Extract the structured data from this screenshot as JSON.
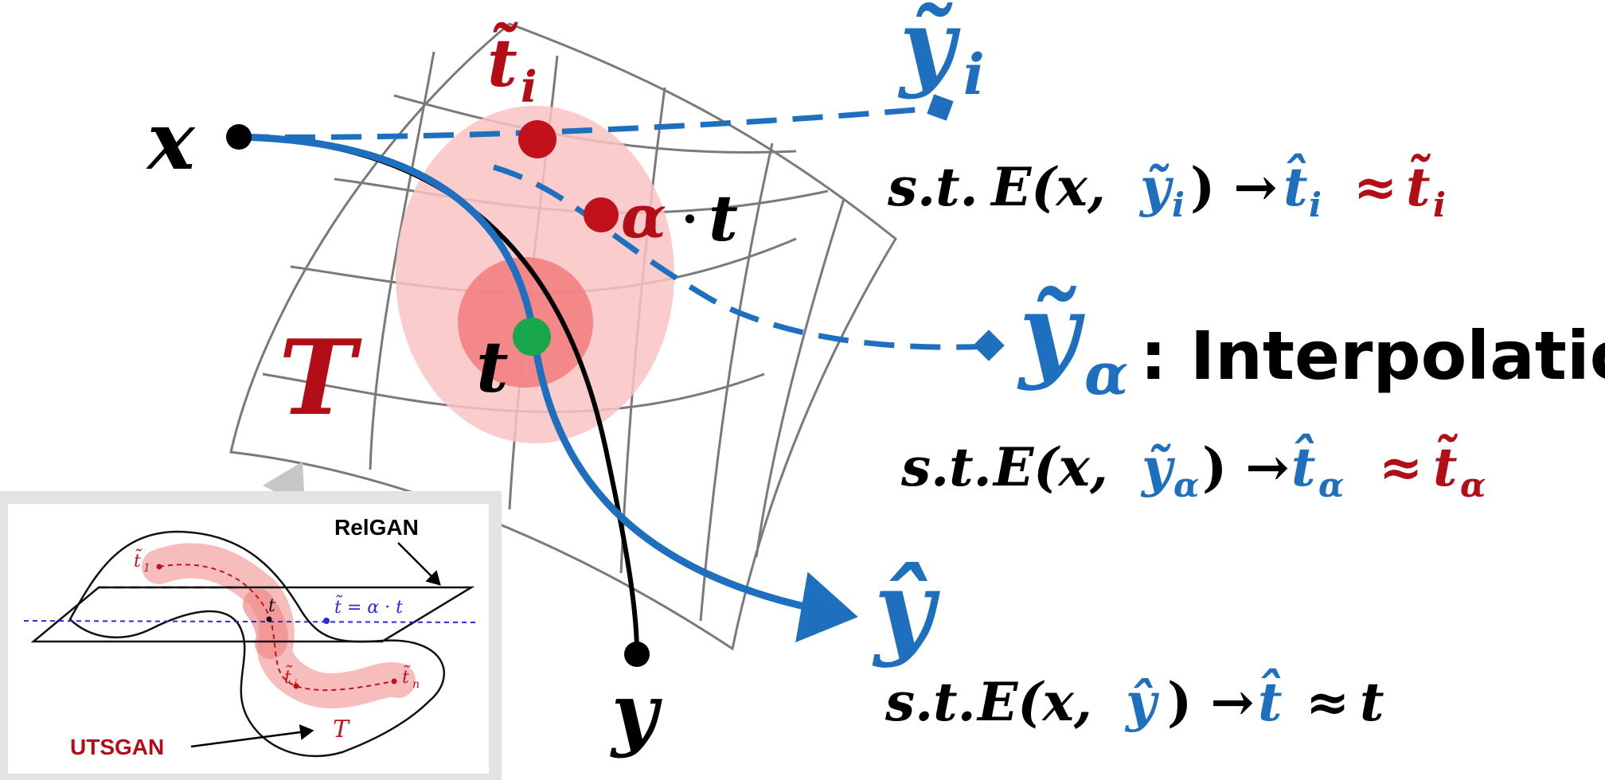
{
  "colors": {
    "blue": "#1f6fbf",
    "red": "#b30d17",
    "black": "#000000",
    "green": "#1aa64a",
    "grid": "#7a7a7a",
    "pink_light": "#f9c3c3",
    "pink_dark": "#f27a7a"
  },
  "labels": {
    "x": "x",
    "y": "y",
    "T": "T",
    "t_center": "t",
    "t_tilde_i_base": "t̃",
    "t_tilde_i_sub": "i",
    "alpha_t_alpha": "α",
    "alpha_t_dot": "·",
    "alpha_t_t": "t",
    "y_tilde_i_base": "ỹ",
    "y_tilde_i_sub": "i",
    "y_tilde_alpha_base": "ỹ",
    "y_tilde_alpha_sub": "α",
    "interpolation": ": Interpolation",
    "y_hat": "ŷ"
  },
  "equations": {
    "eq_i": {
      "st": "s.t.",
      "E_open": "E(x,",
      "arg_base": "ỹ",
      "arg_sub": "i",
      "close_arrow": ") →",
      "hat_base": "t̂",
      "hat_sub": "i",
      "approx": "≈",
      "tilde_base": "t̃",
      "tilde_sub": "i"
    },
    "eq_alpha": {
      "st": "s.t.",
      "E_open": "E(x,",
      "arg_base": "ỹ",
      "arg_sub": "α",
      "close_arrow": ") →",
      "hat_base": "t̂",
      "hat_sub": "α",
      "approx": "≈",
      "tilde_base": "t̃",
      "tilde_sub": "α"
    },
    "eq_hat": {
      "st": "s.t.",
      "E_open": "E(x,",
      "arg": "ŷ",
      "close_arrow": ") →",
      "hat": "t̂",
      "approx": "≈",
      "t": "t"
    }
  },
  "inset": {
    "relgan": "RelGAN",
    "utsgan": "UTSGAN",
    "t1_base": "t̃",
    "t1_sub": "1",
    "t": "t",
    "ti_base": "t̃",
    "ti_sub": "i",
    "tn_base": "t̃",
    "tn_sub": "n",
    "interp_eq": "t̃ = α · t",
    "T": "T"
  }
}
